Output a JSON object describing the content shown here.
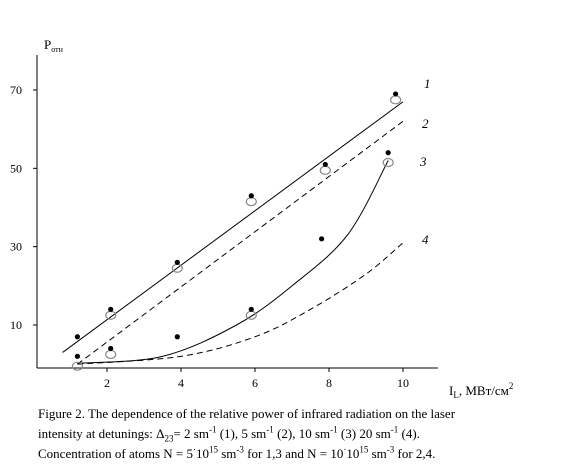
{
  "chart_data": {
    "type": "line",
    "y_axis_label": "P",
    "y_axis_label_sub": "отн",
    "x_axis_label": "I",
    "x_axis_label_sub": "L",
    "x_axis_unit": ", МВт/см",
    "x_axis_unit_sup": "2",
    "x_ticks": [
      2,
      4,
      6,
      8,
      10
    ],
    "y_ticks": [
      10,
      30,
      50,
      70
    ],
    "xlim": [
      0,
      11
    ],
    "ylim": [
      0,
      80
    ],
    "grid": false,
    "series": [
      {
        "name": "1",
        "style": "solid",
        "points_filled": [
          [
            1.2,
            7
          ],
          [
            2.1,
            14
          ],
          [
            3.9,
            26
          ],
          [
            5.9,
            43
          ],
          [
            7.9,
            51
          ],
          [
            9.8,
            69
          ]
        ],
        "points_open": [
          [
            2.1,
            13
          ],
          [
            3.9,
            25
          ],
          [
            5.9,
            42
          ],
          [
            7.9,
            50
          ],
          [
            9.8,
            68
          ]
        ],
        "curve": [
          [
            0.8,
            3
          ],
          [
            10.0,
            67
          ]
        ]
      },
      {
        "name": "2",
        "style": "dashed",
        "curve": [
          [
            1.2,
            0
          ],
          [
            10.0,
            62
          ]
        ]
      },
      {
        "name": "3",
        "style": "solid",
        "points_filled": [
          [
            1.2,
            2
          ],
          [
            2.1,
            4
          ],
          [
            3.9,
            7
          ],
          [
            5.9,
            14
          ],
          [
            7.8,
            32
          ],
          [
            9.6,
            54
          ]
        ],
        "points_open": [
          [
            1.2,
            0
          ],
          [
            2.1,
            3
          ],
          [
            5.9,
            13
          ],
          [
            9.6,
            52
          ]
        ],
        "curve": [
          [
            1.2,
            0.2
          ],
          [
            3.5,
            2
          ],
          [
            5.5,
            10
          ],
          [
            7.0,
            20
          ],
          [
            8.5,
            33
          ],
          [
            9.6,
            52
          ]
        ]
      },
      {
        "name": "4",
        "style": "dashed",
        "curve": [
          [
            1.2,
            0
          ],
          [
            4.0,
            2
          ],
          [
            6.0,
            7
          ],
          [
            7.5,
            14
          ],
          [
            9.0,
            23
          ],
          [
            10.0,
            31
          ]
        ]
      }
    ]
  },
  "caption": {
    "line1": "Figure 2. The dependence of the relative power of infrared radiation on the laser",
    "line2_a": "intensity at detunings: ",
    "delta": "Δ",
    "delta_sub": "23",
    "line2_b": "= 2 sm",
    "exp": "-1",
    "line2_c": " (1), 5 sm",
    "line2_d": " (2), 10 sm",
    "line2_e": " (3) 20 sm",
    "line2_f": " (4).",
    "line3_a": "Concentration of atoms N = 5",
    "dot": "·",
    "line3_b": "10",
    "exp15": "15",
    "line3_c": " sm",
    "exp_m3": "-3",
    "line3_d": " for 1,3 and N = 10",
    "line3_e": " for 2,4."
  }
}
